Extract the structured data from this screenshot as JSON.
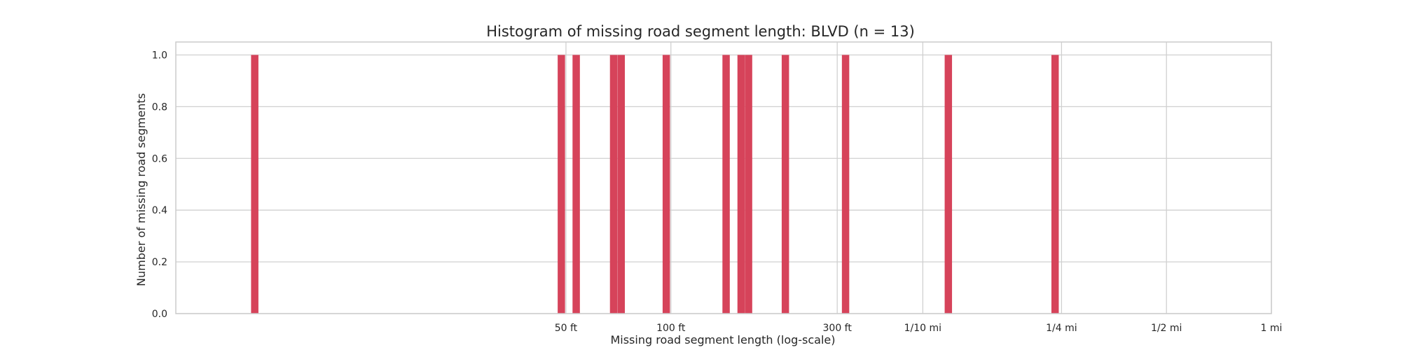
{
  "chart_data": {
    "type": "bar",
    "title": "Histogram of missing road segment length: BLVD (n = 13)",
    "xlabel": "Missing road segment  length (log-scale)",
    "ylabel": "Number of missing road segments",
    "x_scale": "log",
    "x_unit": "ft",
    "xlim": [
      3.8,
      5280
    ],
    "ylim": [
      0,
      1.05
    ],
    "grid": true,
    "xticks": [
      {
        "value": 50,
        "label": "50 ft"
      },
      {
        "value": 100,
        "label": "100 ft"
      },
      {
        "value": 300,
        "label": "300 ft"
      },
      {
        "value": 528,
        "label": "1/10 mi"
      },
      {
        "value": 1320,
        "label": "1/4 mi"
      },
      {
        "value": 2640,
        "label": "1/2 mi"
      },
      {
        "value": 5280,
        "label": "1 mi"
      }
    ],
    "yticks": [
      {
        "value": 0.0,
        "label": "0.0"
      },
      {
        "value": 0.2,
        "label": "0.2"
      },
      {
        "value": 0.4,
        "label": "0.4"
      },
      {
        "value": 0.6,
        "label": "0.6"
      },
      {
        "value": 0.8,
        "label": "0.8"
      },
      {
        "value": 1.0,
        "label": "1.0"
      }
    ],
    "bins": [
      {
        "x": 6.4,
        "count": 1
      },
      {
        "x": 48.5,
        "count": 1
      },
      {
        "x": 53.5,
        "count": 1
      },
      {
        "x": 68.5,
        "count": 1
      },
      {
        "x": 72.0,
        "count": 1
      },
      {
        "x": 97.0,
        "count": 1
      },
      {
        "x": 144,
        "count": 1
      },
      {
        "x": 159,
        "count": 1
      },
      {
        "x": 167,
        "count": 1
      },
      {
        "x": 213,
        "count": 1
      },
      {
        "x": 317,
        "count": 1
      },
      {
        "x": 625,
        "count": 1
      },
      {
        "x": 1265,
        "count": 1
      }
    ],
    "colors": {
      "bar": "#d6435a",
      "grid": "#d0d0d0",
      "frame": "#cccccc",
      "text": "#262626"
    }
  }
}
